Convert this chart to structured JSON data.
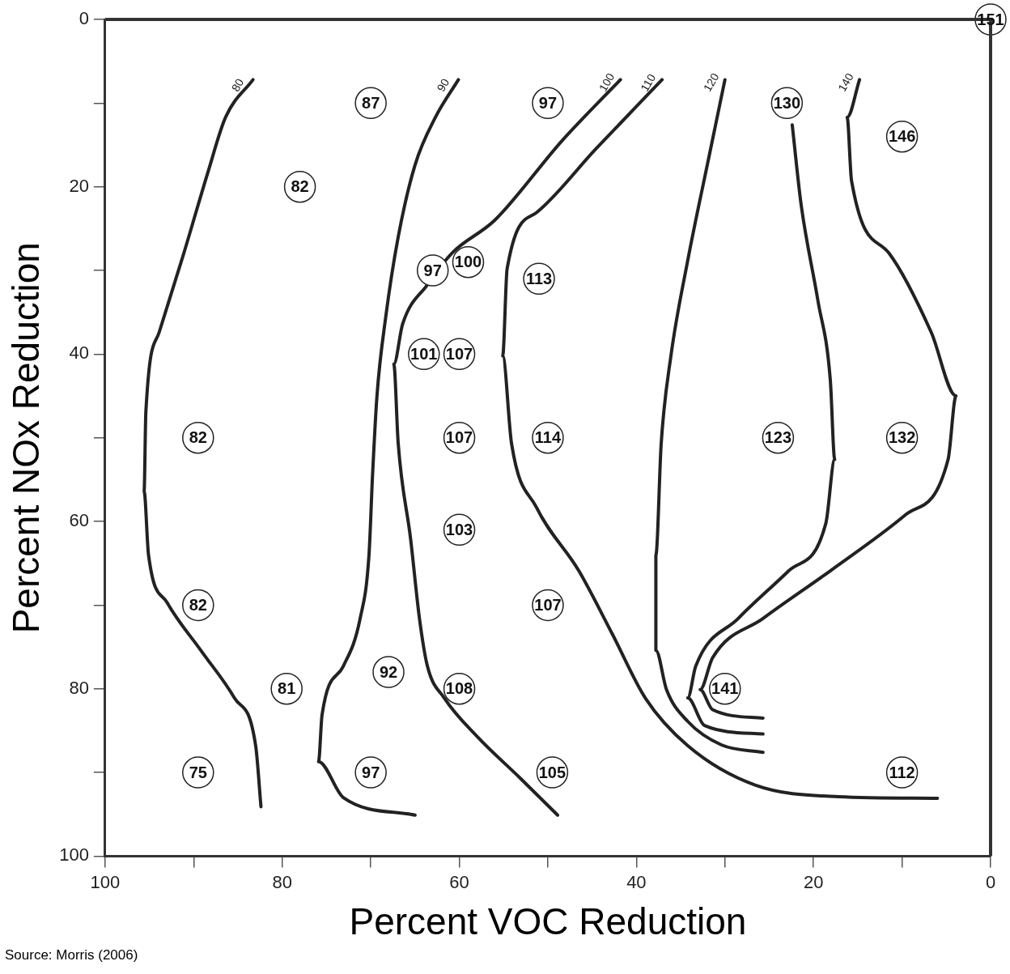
{
  "chart_data": {
    "type": "line",
    "xlabel": "Percent VOC Reduction",
    "ylabel": "Percent NOx Reduction",
    "xlim": [
      100,
      0
    ],
    "ylim": [
      100,
      0
    ],
    "xticks": [
      100,
      {
        "value": 90,
        "label": null
      },
      80,
      {
        "value": 70,
        "label": null
      },
      60,
      {
        "value": 50,
        "label": null
      },
      40,
      {
        "value": 30,
        "label": null
      },
      20,
      {
        "value": 10,
        "label": null
      },
      0
    ],
    "yticks": [
      0,
      {
        "value": 10,
        "label": null
      },
      20,
      {
        "value": 30,
        "label": null
      },
      40,
      {
        "value": 50,
        "label": null
      },
      60,
      {
        "value": 70,
        "label": null
      },
      80,
      {
        "value": 90,
        "label": null
      },
      100
    ],
    "legend": false,
    "marker": "none",
    "line_style": "solid",
    "series": [
      {
        "name": "80",
        "color": "#222222",
        "x": [
          83.3,
          86.4,
          88.4,
          91.1,
          93.9,
          95.4,
          95.6,
          95.1,
          93.0,
          89.2,
          85.4,
          83.0,
          82.4
        ],
        "values": [
          7.2,
          11.7,
          18.3,
          27.9,
          37.4,
          46.9,
          56.4,
          64.0,
          69.7,
          75.4,
          81.1,
          86.8,
          94.1
        ]
      },
      {
        "name": "90",
        "color": "#222222",
        "x": [
          60.1,
          62.7,
          65.0,
          66.9,
          68.3,
          69.3,
          69.8,
          70.2,
          71.2,
          73.1,
          75.5,
          75.9,
          73.1,
          65.0
        ],
        "values": [
          7.2,
          11.7,
          17.4,
          26.0,
          35.5,
          45.0,
          54.5,
          64.0,
          71.6,
          77.3,
          83.1,
          88.7,
          93.0,
          95.1
        ]
      },
      {
        "name": "100",
        "color": "#222222",
        "x": [
          41.8,
          48.4,
          56.0,
          60.8,
          63.6,
          66.4,
          67.4,
          66.9,
          65.5,
          64.5,
          63.6,
          61.7,
          57.9,
          53.2,
          48.9
        ],
        "values": [
          7.2,
          14.5,
          24.0,
          27.9,
          31.7,
          36.4,
          41.2,
          50.7,
          62.1,
          71.6,
          77.3,
          81.1,
          85.8,
          90.6,
          95.1
        ]
      },
      {
        "name": "110",
        "color": "#222222",
        "x": [
          37.1,
          44.6,
          51.3,
          54.6,
          55.1,
          54.1,
          51.3,
          46.5,
          42.7,
          39.0,
          34.2,
          26.6,
          17.2,
          6.0
        ],
        "values": [
          7.2,
          15.5,
          23.1,
          29.8,
          40.2,
          50.7,
          58.3,
          65.9,
          73.5,
          81.1,
          86.8,
          91.5,
          92.9,
          93.1
        ]
      },
      {
        "name": "120",
        "color": "#222222",
        "x": [
          30.0,
          31.8,
          34.2,
          36.1,
          37.2,
          37.8,
          37.8,
          36.6,
          34.2,
          30.4,
          25.7
        ],
        "values": [
          7.2,
          16.4,
          28.8,
          40.2,
          50.7,
          64.0,
          75.4,
          80.1,
          83.9,
          86.7,
          87.6
        ]
      },
      {
        "color": "#222222",
        "x": [
          22.4,
          21.4,
          19.5,
          18.1,
          17.6,
          18.6,
          22.8,
          28.5,
          33.3,
          34.2,
          32.3,
          25.7
        ],
        "values": [
          12.6,
          22.1,
          33.6,
          43.1,
          52.6,
          60.2,
          65.9,
          71.6,
          77.3,
          81.1,
          84.4,
          85.4
        ]
      },
      {
        "name": "140",
        "color": "#222222",
        "x": [
          14.8,
          16.2,
          15.7,
          11.5,
          6.7,
          3.9,
          4.8,
          9.6,
          18.1,
          25.7,
          31.4,
          32.8,
          31.4,
          25.7
        ],
        "values": [
          7.2,
          11.7,
          19.3,
          27.9,
          37.4,
          45.0,
          52.6,
          59.2,
          65.9,
          71.6,
          76.3,
          80.1,
          82.5,
          83.5
        ]
      },
      {
        "type": "scatter",
        "color": "#222222",
        "marker": "circle",
        "x": [
          70,
          50,
          23,
          10,
          0,
          78,
          63,
          59,
          51,
          64,
          60,
          89.5,
          60,
          50,
          24,
          10,
          60,
          89.5,
          50,
          79.5,
          68,
          60,
          30,
          89.5,
          70,
          49.5,
          10
        ],
        "values": [
          10,
          10,
          10,
          14,
          0,
          20,
          30,
          29,
          31,
          40,
          40,
          50,
          50,
          50,
          50,
          50,
          61,
          70,
          70,
          80,
          78,
          80,
          80,
          90,
          90,
          90,
          90
        ],
        "name": null
      }
    ],
    "annotations": [
      {
        "text": "87",
        "x": 70,
        "y": 10
      },
      {
        "text": "97",
        "x": 50,
        "y": 10
      },
      {
        "text": "130",
        "x": 23,
        "y": 10
      },
      {
        "text": "146",
        "x": 10,
        "y": 14
      },
      {
        "text": "151",
        "x": 0,
        "y": 0
      },
      {
        "text": "82",
        "x": 78,
        "y": 20
      },
      {
        "text": "97",
        "x": 63,
        "y": 30
      },
      {
        "text": "100",
        "x": 59,
        "y": 29
      },
      {
        "text": "113",
        "x": 51,
        "y": 31
      },
      {
        "text": "101",
        "x": 64,
        "y": 40
      },
      {
        "text": "107",
        "x": 60,
        "y": 40
      },
      {
        "text": "82",
        "x": 89.5,
        "y": 50
      },
      {
        "text": "107",
        "x": 60,
        "y": 50
      },
      {
        "text": "114",
        "x": 50,
        "y": 50
      },
      {
        "text": "123",
        "x": 24,
        "y": 50
      },
      {
        "text": "132",
        "x": 10,
        "y": 50
      },
      {
        "text": "103",
        "x": 60,
        "y": 61
      },
      {
        "text": "82",
        "x": 89.5,
        "y": 70
      },
      {
        "text": "107",
        "x": 50,
        "y": 70
      },
      {
        "text": "81",
        "x": 79.5,
        "y": 80
      },
      {
        "text": "92",
        "x": 68,
        "y": 78
      },
      {
        "text": "108",
        "x": 60,
        "y": 80
      },
      {
        "text": "141",
        "x": 30,
        "y": 80
      },
      {
        "text": "75",
        "x": 89.5,
        "y": 90
      },
      {
        "text": "97",
        "x": 70,
        "y": 90
      },
      {
        "text": "105",
        "x": 49.5,
        "y": 90
      },
      {
        "text": "112",
        "x": 10,
        "y": 90
      },
      "Source: Morris (2006)"
    ]
  }
}
